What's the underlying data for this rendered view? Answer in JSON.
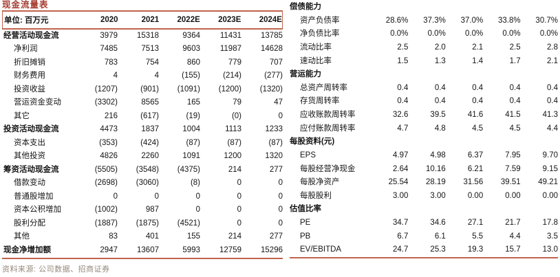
{
  "colors": {
    "accent": "#c0634c",
    "title_text": "#a63c30",
    "source_text": "#95897c"
  },
  "left_table": {
    "title": "现金流量表",
    "unit_label": "单位: 百万元",
    "years": [
      "2020",
      "2021",
      "2022E",
      "2023E",
      "2024E"
    ],
    "rows": [
      {
        "label": "经营活动现金流",
        "style": "section",
        "values": [
          "3979",
          "15318",
          "9364",
          "11431",
          "13785"
        ]
      },
      {
        "label": "净利润",
        "style": "detail",
        "values": [
          "7485",
          "7513",
          "9603",
          "11987",
          "14628"
        ]
      },
      {
        "label": "折旧摊销",
        "style": "detail",
        "values": [
          "783",
          "754",
          "860",
          "779",
          "707"
        ]
      },
      {
        "label": "财务费用",
        "style": "detail",
        "values": [
          "4",
          "4",
          "(155)",
          "(214)",
          "(277)"
        ]
      },
      {
        "label": "投资收益",
        "style": "detail",
        "values": [
          "(1207)",
          "(901)",
          "(1091)",
          "(1200)",
          "(1320)"
        ]
      },
      {
        "label": "营运资金变动",
        "style": "detail",
        "values": [
          "(3302)",
          "8565",
          "165",
          "79",
          "47"
        ]
      },
      {
        "label": "其它",
        "style": "detail",
        "values": [
          "216",
          "(617)",
          "(19)",
          "(0)",
          "0"
        ]
      },
      {
        "label": "投资活动现金流",
        "style": "section",
        "values": [
          "4473",
          "1837",
          "1004",
          "1113",
          "1233"
        ]
      },
      {
        "label": "资本支出",
        "style": "detail",
        "values": [
          "(353)",
          "(424)",
          "(87)",
          "(87)",
          "(87)"
        ]
      },
      {
        "label": "其他投资",
        "style": "detail",
        "values": [
          "4826",
          "2260",
          "1091",
          "1200",
          "1320"
        ]
      },
      {
        "label": "筹资活动现金流",
        "style": "section",
        "values": [
          "(5505)",
          "(3548)",
          "(4375)",
          "214",
          "277"
        ]
      },
      {
        "label": "借款变动",
        "style": "detail",
        "values": [
          "(2698)",
          "(3060)",
          "(8)",
          "0",
          "0"
        ]
      },
      {
        "label": "普通股增加",
        "style": "detail",
        "values": [
          "0",
          "0",
          "0",
          "0",
          "0"
        ]
      },
      {
        "label": "资本公积增加",
        "style": "detail",
        "values": [
          "(1002)",
          "987",
          "0",
          "0",
          "0"
        ]
      },
      {
        "label": "股利分配",
        "style": "detail",
        "values": [
          "(1887)",
          "(1875)",
          "(4521)",
          "0",
          "0"
        ]
      },
      {
        "label": "其他",
        "style": "detail",
        "values": [
          "83",
          "401",
          "155",
          "214",
          "277"
        ]
      },
      {
        "label": "现金净增加额",
        "style": "section",
        "values": [
          "2947",
          "13607",
          "5993",
          "12759",
          "15296"
        ]
      }
    ],
    "source_note": "资料来源: 公司数据、招商证券"
  },
  "right_table": {
    "rows": [
      {
        "label": "偿债能力",
        "style": "header",
        "values": [
          "",
          "",
          "",
          "",
          ""
        ]
      },
      {
        "label": "资产负债率",
        "style": "detail",
        "values": [
          "28.6%",
          "37.3%",
          "37.0%",
          "33.8%",
          "30.7%"
        ]
      },
      {
        "label": "净负债比率",
        "style": "detail",
        "values": [
          "0.0%",
          "0.0%",
          "0.0%",
          "0.0%",
          "0.0%"
        ]
      },
      {
        "label": "流动比率",
        "style": "detail",
        "values": [
          "2.5",
          "2.0",
          "2.1",
          "2.5",
          "2.8"
        ]
      },
      {
        "label": "速动比率",
        "style": "detail",
        "values": [
          "1.5",
          "1.3",
          "1.4",
          "1.7",
          "2.1"
        ]
      },
      {
        "label": "营运能力",
        "style": "header",
        "values": [
          "",
          "",
          "",
          "",
          ""
        ]
      },
      {
        "label": "总资产周转率",
        "style": "detail",
        "values": [
          "0.4",
          "0.4",
          "0.4",
          "0.4",
          "0.4"
        ]
      },
      {
        "label": "存货周转率",
        "style": "detail",
        "values": [
          "0.4",
          "0.4",
          "0.4",
          "0.4",
          "0.4"
        ]
      },
      {
        "label": "应收账款周转率",
        "style": "detail",
        "values": [
          "32.6",
          "39.5",
          "41.6",
          "41.5",
          "41.3"
        ]
      },
      {
        "label": "应付账款周转率",
        "style": "detail",
        "values": [
          "4.7",
          "4.8",
          "4.5",
          "4.5",
          "4.4"
        ]
      },
      {
        "label": "每股资料(元)",
        "style": "header",
        "values": [
          "",
          "",
          "",
          "",
          ""
        ]
      },
      {
        "label": "EPS",
        "style": "detail",
        "values": [
          "4.97",
          "4.98",
          "6.37",
          "7.95",
          "9.70"
        ]
      },
      {
        "label": "每股经营净现金",
        "style": "detail",
        "values": [
          "2.64",
          "10.16",
          "6.21",
          "7.59",
          "9.15"
        ]
      },
      {
        "label": "每股净资产",
        "style": "detail",
        "values": [
          "25.54",
          "28.19",
          "31.56",
          "39.51",
          "49.21"
        ]
      },
      {
        "label": "每股股利",
        "style": "detail",
        "values": [
          "3.00",
          "3.00",
          "0.00",
          "0.00",
          "0.00"
        ]
      },
      {
        "label": "估值比率",
        "style": "header",
        "values": [
          "",
          "",
          "",
          "",
          ""
        ]
      },
      {
        "label": "PE",
        "style": "detail",
        "values": [
          "34.7",
          "34.6",
          "27.1",
          "21.7",
          "17.8"
        ]
      },
      {
        "label": "PB",
        "style": "detail",
        "values": [
          "6.7",
          "6.1",
          "5.5",
          "4.4",
          "3.5"
        ]
      },
      {
        "label": "EV/EBITDA",
        "style": "detail",
        "values": [
          "24.7",
          "25.3",
          "19.3",
          "15.7",
          "13.0"
        ]
      }
    ]
  }
}
